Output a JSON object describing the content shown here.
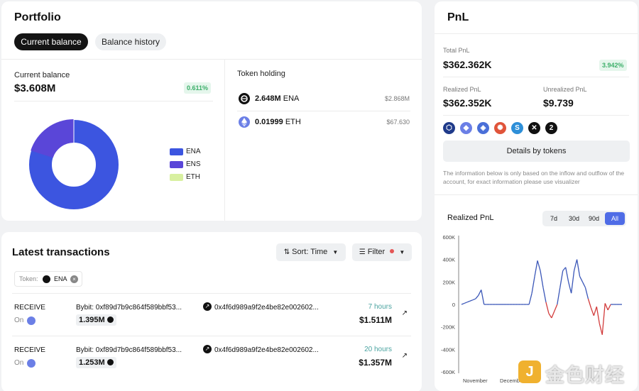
{
  "portfolio": {
    "title": "Portfolio",
    "tabs": [
      "Current balance",
      "Balance history"
    ],
    "current_balance_label": "Current balance",
    "current_balance_value": "$3.608M",
    "change_badge": "0.611%",
    "legend": [
      {
        "name": "ENA",
        "color": "#3c55e0"
      },
      {
        "name": "ENS",
        "color": "#5a46d8"
      },
      {
        "name": "ETH",
        "color": "#d8f0a0"
      }
    ],
    "token_holding_label": "Token holding",
    "holdings": [
      {
        "amount": "2.648M",
        "symbol": "ENA",
        "usd": "$2.868M",
        "icon": "ena-icon"
      },
      {
        "amount": "0.01999",
        "symbol": "ETH",
        "usd": "$67.630",
        "icon": "eth-icon"
      }
    ]
  },
  "transactions": {
    "title": "Latest transactions",
    "sort_label": "Sort: Time",
    "filter_label": "Filter",
    "token_filter_label": "Token:",
    "token_filter_value": "ENA",
    "rows": [
      {
        "type": "RECEIVE",
        "on": "On",
        "from": "Bybit: 0xf89d7b9c864f589bbf53...",
        "to": "0x4f6d989a9f2e4be82e002602...",
        "amount": "1.395M",
        "time": "7 hours",
        "usd": "$1.511M"
      },
      {
        "type": "RECEIVE",
        "on": "On",
        "from": "Bybit: 0xf89d7b9c864f589bbf53...",
        "to": "0x4f6d989a9f2e4be82e002602...",
        "amount": "1.253M",
        "time": "20 hours",
        "usd": "$1.357M"
      }
    ]
  },
  "pnl": {
    "title": "PnL",
    "total_label": "Total PnL",
    "total_value": "$362.362K",
    "total_badge": "3.942%",
    "realized_label": "Realized PnL",
    "realized_value": "$362.352K",
    "unrealized_label": "Unrealized PnL",
    "unrealized_value": "$9.739",
    "more_count": "2",
    "details_button": "Details by tokens",
    "note": "The information below is only based on the inflow and outflow of the account, for exact information please use visualizer",
    "chart_title": "Realized PnL",
    "ranges": [
      "7d",
      "30d",
      "90d",
      "All"
    ],
    "active_range": "All"
  },
  "watermark": "金色财经",
  "chart_data": {
    "type": "line",
    "title": "Realized PnL",
    "xlabel": "",
    "ylabel": "",
    "x_ticks": [
      "November",
      "December"
    ],
    "y_ticks": [
      "600K",
      "400K",
      "200K",
      "0",
      "-200K",
      "-400K",
      "-600K"
    ],
    "ylim": [
      -600000,
      600000
    ],
    "colors": {
      "positive": "#3b57b8",
      "negative": "#d23b3b"
    },
    "series": [
      {
        "values": [
          0,
          10000,
          20000,
          30000,
          40000,
          50000,
          80000,
          130000,
          0,
          0,
          0,
          0,
          0,
          0,
          0,
          0,
          0,
          0,
          0,
          0,
          0,
          0,
          0,
          0,
          0,
          100000,
          250000,
          390000,
          300000,
          150000,
          20000,
          -80000,
          -120000,
          -60000,
          0,
          150000,
          300000,
          330000,
          200000,
          100000,
          300000,
          400000,
          250000,
          200000,
          150000,
          50000,
          -30000,
          -100000,
          -20000,
          -170000,
          -270000,
          10000,
          -50000,
          0,
          0,
          0,
          0,
          0
        ]
      }
    ]
  }
}
